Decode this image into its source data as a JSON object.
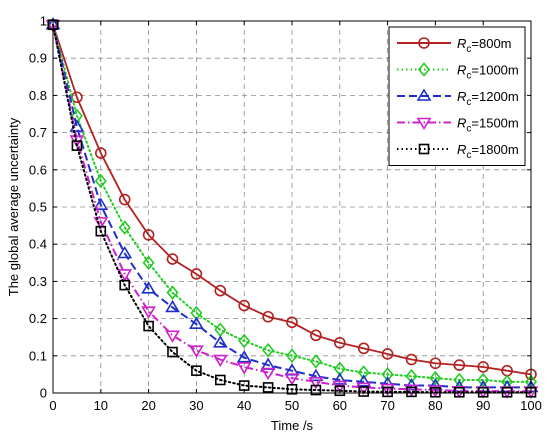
{
  "chart_data": {
    "type": "line",
    "title": "",
    "xlabel": "Time /s",
    "ylabel": "The global average uncertainty",
    "xlim": [
      0,
      100
    ],
    "ylim": [
      0,
      1
    ],
    "xticks": [
      0,
      10,
      20,
      30,
      40,
      50,
      60,
      70,
      80,
      90,
      100
    ],
    "yticks": [
      0,
      0.1,
      0.2,
      0.3,
      0.4,
      0.5,
      0.6,
      0.7,
      0.8,
      0.9,
      1
    ],
    "grid": true,
    "legend_position": "top-right",
    "x": [
      0,
      5,
      10,
      15,
      20,
      25,
      30,
      35,
      40,
      45,
      50,
      55,
      60,
      65,
      70,
      75,
      80,
      85,
      90,
      95,
      100
    ],
    "series": [
      {
        "legend_symbol": "R",
        "legend_subscript": "c",
        "legend_suffix": "=800m",
        "color": "#b22222",
        "dash": "solid",
        "marker": "circle",
        "values": [
          0.99,
          0.795,
          0.645,
          0.52,
          0.425,
          0.36,
          0.32,
          0.275,
          0.235,
          0.205,
          0.19,
          0.155,
          0.135,
          0.12,
          0.105,
          0.09,
          0.08,
          0.075,
          0.07,
          0.06,
          0.05
        ]
      },
      {
        "legend_symbol": "R",
        "legend_subscript": "c",
        "legend_suffix": "=1000m",
        "color": "#22cc22",
        "dash": "dotted",
        "marker": "diamond",
        "values": [
          0.99,
          0.745,
          0.57,
          0.445,
          0.35,
          0.27,
          0.215,
          0.17,
          0.14,
          0.115,
          0.1,
          0.085,
          0.065,
          0.055,
          0.05,
          0.045,
          0.04,
          0.035,
          0.035,
          0.03,
          0.03
        ]
      },
      {
        "legend_symbol": "R",
        "legend_subscript": "c",
        "legend_suffix": "=1200m",
        "color": "#1e2fcc",
        "dash": "dashed",
        "marker": "triangle-up",
        "values": [
          0.99,
          0.715,
          0.505,
          0.375,
          0.28,
          0.23,
          0.185,
          0.135,
          0.095,
          0.075,
          0.06,
          0.045,
          0.035,
          0.03,
          0.025,
          0.02,
          0.02,
          0.015,
          0.015,
          0.015,
          0.015
        ]
      },
      {
        "legend_symbol": "R",
        "legend_subscript": "c",
        "legend_suffix": "=1500m",
        "color": "#cc22cc",
        "dash": "dashdot",
        "marker": "triangle-down",
        "values": [
          0.99,
          0.68,
          0.46,
          0.32,
          0.22,
          0.155,
          0.115,
          0.09,
          0.07,
          0.055,
          0.04,
          0.03,
          0.02,
          0.015,
          0.012,
          0.01,
          0.008,
          0.006,
          0.005,
          0.005,
          0.005
        ]
      },
      {
        "legend_symbol": "R",
        "legend_subscript": "c",
        "legend_suffix": "=1800m",
        "color": "#000000",
        "dash": "dotted",
        "marker": "square",
        "values": [
          0.99,
          0.665,
          0.435,
          0.29,
          0.18,
          0.11,
          0.06,
          0.035,
          0.02,
          0.015,
          0.01,
          0.008,
          0.006,
          0.004,
          0.003,
          0.003,
          0.002,
          0.002,
          0.002,
          0.002,
          0.002
        ]
      }
    ]
  }
}
